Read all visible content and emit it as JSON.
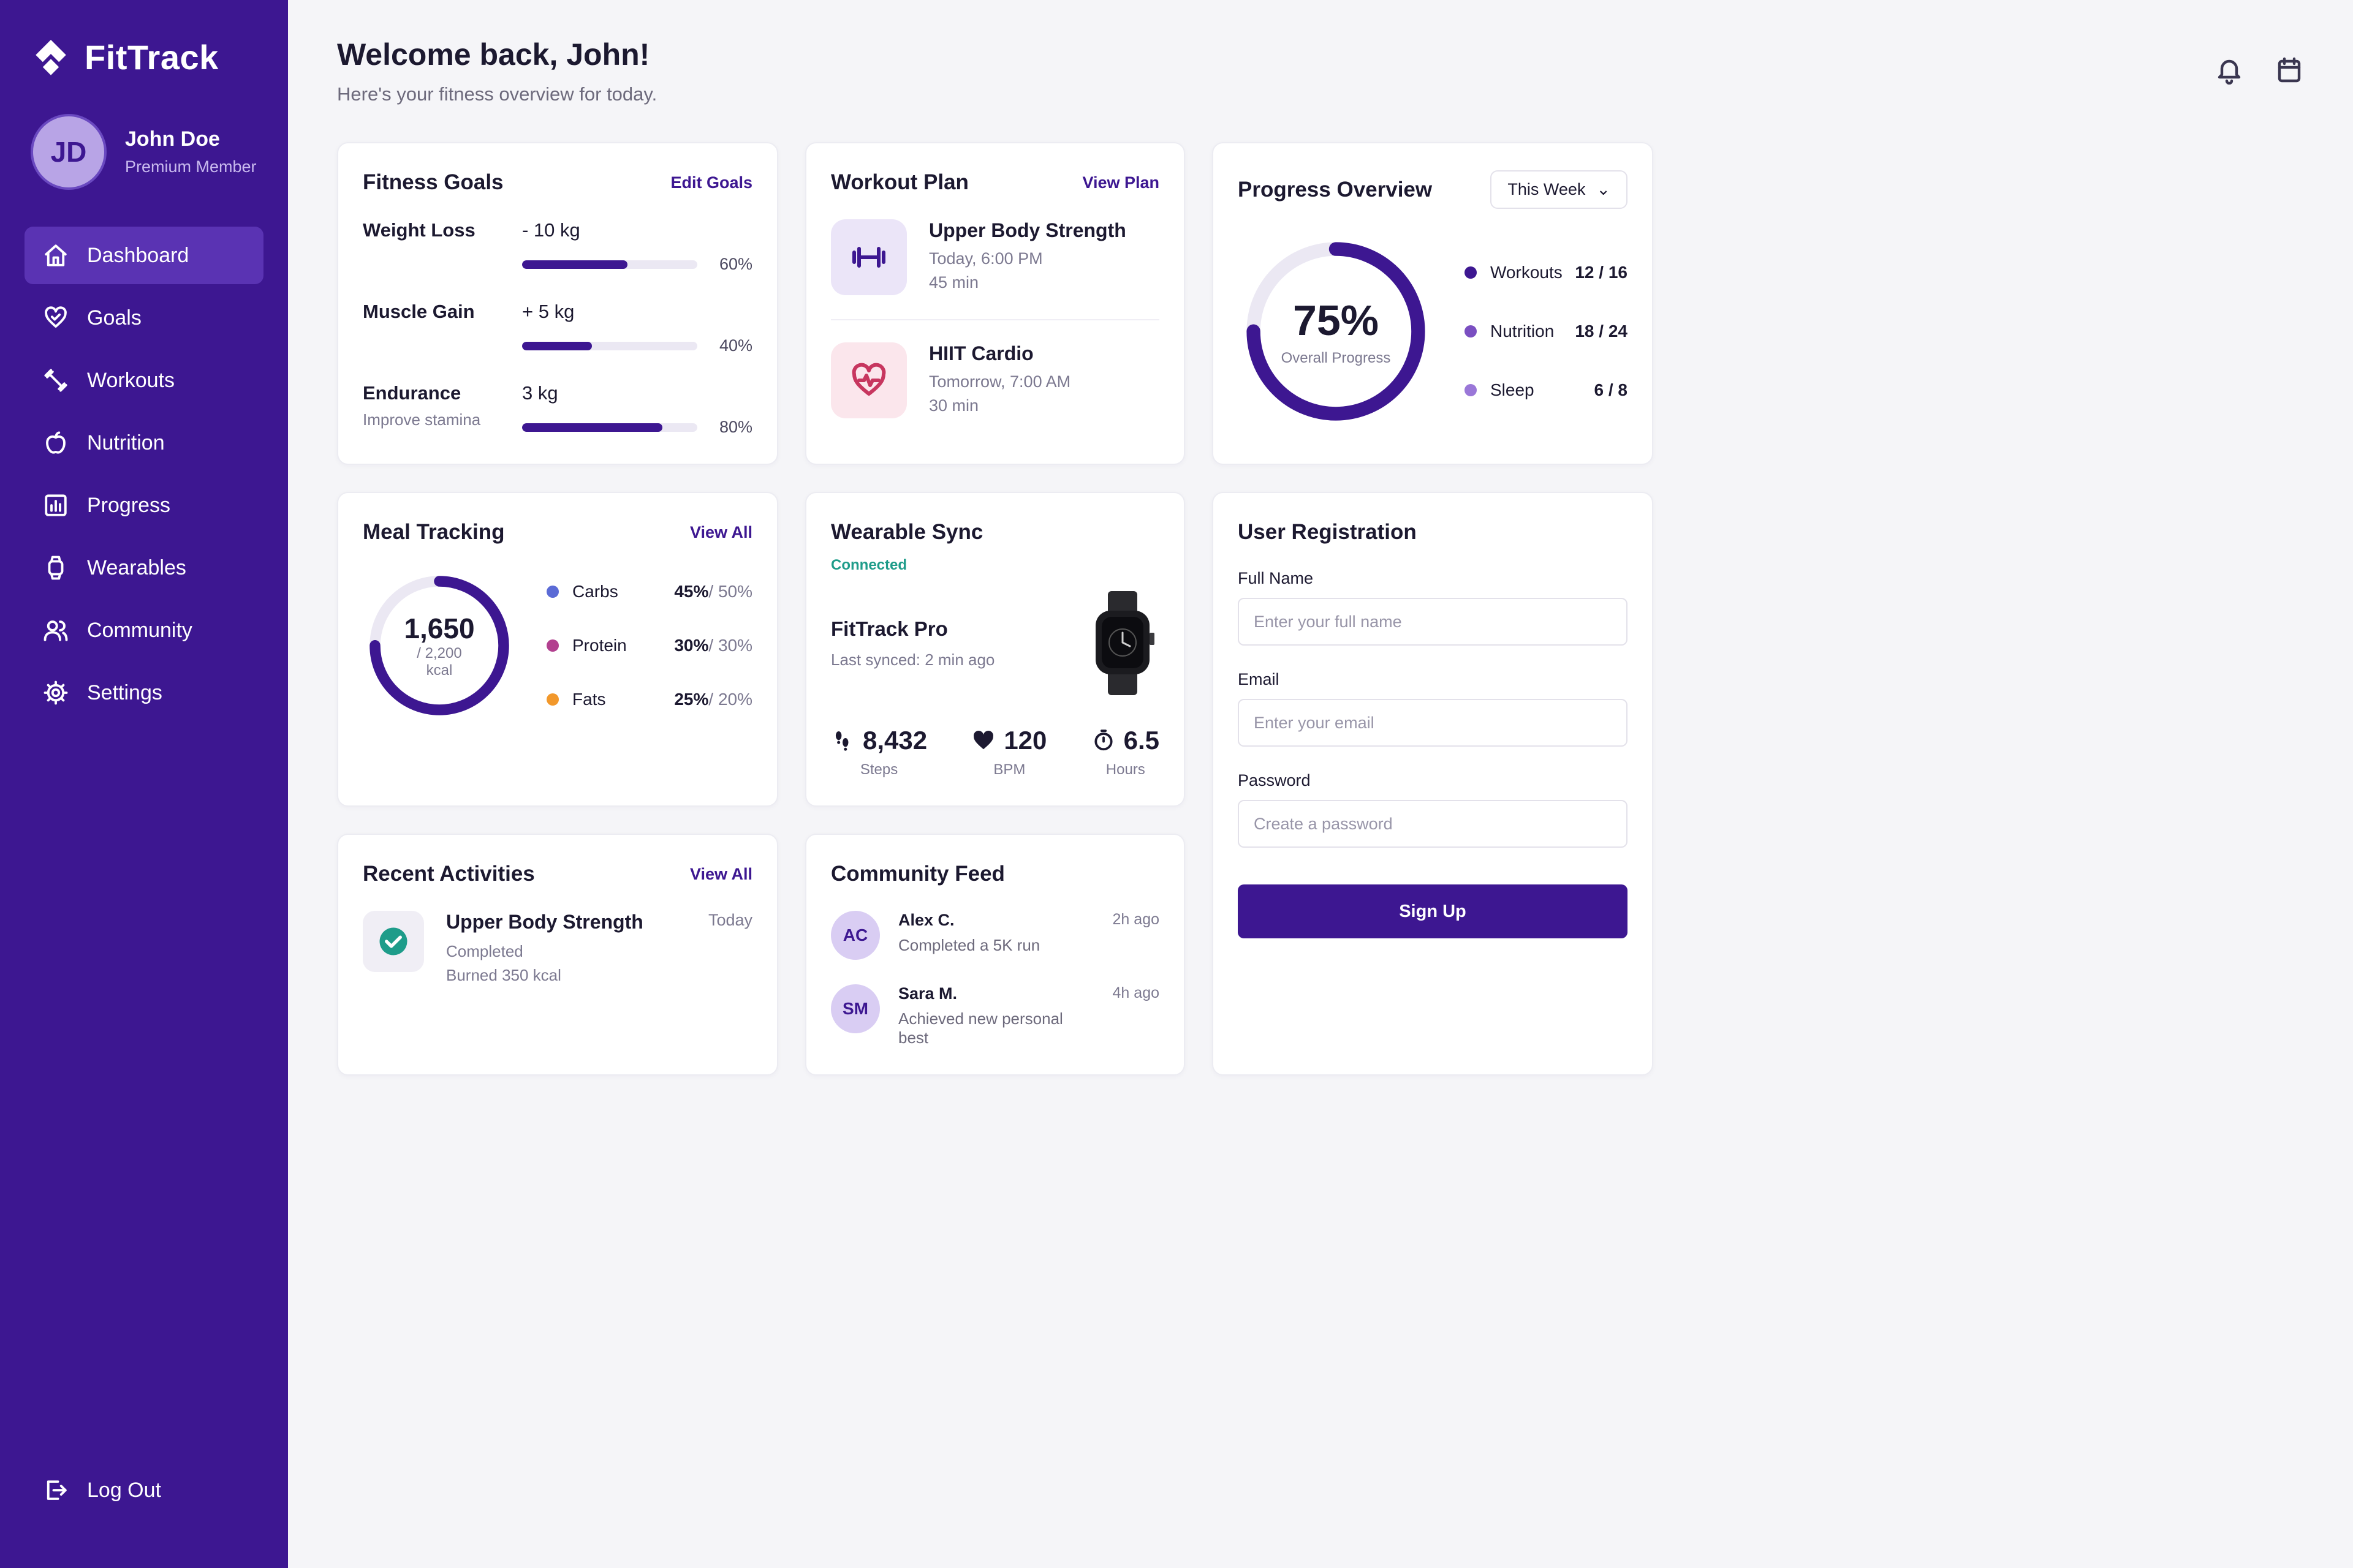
{
  "brand": {
    "name": "FitTrack"
  },
  "user": {
    "initials": "JD",
    "name": "John Doe",
    "tier": "Premium Member"
  },
  "nav": [
    {
      "label": "Dashboard",
      "icon": "home-icon"
    },
    {
      "label": "Goals",
      "icon": "heart-check-icon"
    },
    {
      "label": "Workouts",
      "icon": "dumbbell-icon"
    },
    {
      "label": "Nutrition",
      "icon": "apple-icon"
    },
    {
      "label": "Progress",
      "icon": "bar-chart-icon"
    },
    {
      "label": "Wearables",
      "icon": "watch-icon"
    },
    {
      "label": "Community",
      "icon": "users-icon"
    },
    {
      "label": "Settings",
      "icon": "gear-icon"
    }
  ],
  "logout": {
    "label": "Log Out"
  },
  "header": {
    "welcome": "Welcome back, John!",
    "subtitle": "Here's your fitness overview for today."
  },
  "goals": {
    "title": "Fitness Goals",
    "link": "Edit Goals",
    "items": [
      {
        "name": "Weight Loss",
        "note": "",
        "target": "- 10 kg",
        "percent_label": "60%",
        "progress": 0.6
      },
      {
        "name": "Muscle Gain",
        "note": "",
        "target": "+ 5 kg",
        "percent_label": "40%",
        "progress": 0.4
      },
      {
        "name": "Endurance",
        "note": "Improve stamina",
        "target": "3 kg",
        "percent_label": "80%",
        "progress": 0.8
      }
    ]
  },
  "workout_plan": {
    "title": "Workout Plan",
    "link": "View Plan",
    "items": [
      {
        "name": "Upper Body Strength",
        "time": "Today, 6:00 PM",
        "duration": "45 min",
        "icon": "dumbbell-icon"
      },
      {
        "name": "HIIT Cardio",
        "time": "Tomorrow, 7:00 AM",
        "duration": "30 min",
        "icon": "heart-pulse-icon"
      }
    ]
  },
  "progress": {
    "title": "Progress Overview",
    "range": "This Week",
    "overall": "75%",
    "overall_label": "Overall Progress",
    "overall_value": 0.75,
    "items": [
      {
        "label": "Workouts",
        "value": "12 / 16",
        "color": "#3d1791"
      },
      {
        "label": "Nutrition",
        "value": "18 / 24",
        "color": "#7a4fc1"
      },
      {
        "label": "Sleep",
        "value": "6 / 8",
        "color": "#9a77d8"
      }
    ]
  },
  "meal": {
    "title": "Meal Tracking",
    "link": "View All",
    "calories": "1,650",
    "goal": "/ 2,200",
    "unit": "kcal",
    "fraction": 0.75,
    "macros": [
      {
        "name": "Carbs",
        "actual": "45%",
        "target": " / 50%",
        "color": "#5b6bd6"
      },
      {
        "name": "Protein",
        "actual": "30%",
        "target": " / 30%",
        "color": "#b2408f"
      },
      {
        "name": "Fats",
        "actual": "25%",
        "target": " / 20%",
        "color": "#f2982b"
      }
    ]
  },
  "wearable": {
    "title": "Wearable Sync",
    "status": "Connected",
    "device": "FitTrack Pro",
    "synced": "Last synced: 2 min ago",
    "stats": [
      {
        "value": "8,432",
        "label": "Steps",
        "icon": "footsteps-icon"
      },
      {
        "value": "120",
        "label": "BPM",
        "icon": "heart-icon"
      },
      {
        "value": "6.5",
        "label": "Hours",
        "icon": "timer-icon"
      }
    ]
  },
  "registration": {
    "title": "User Registration",
    "full_name": {
      "label": "Full Name",
      "placeholder": "Enter your full name"
    },
    "email": {
      "label": "Email",
      "placeholder": "Enter your email"
    },
    "password": {
      "label": "Password",
      "placeholder": "Create a password"
    },
    "submit": "Sign Up"
  },
  "activities": {
    "title": "Recent Activities",
    "link": "View All",
    "items": [
      {
        "name": "Upper Body Strength",
        "status": "Completed",
        "detail": "Burned 350 kcal",
        "date": "Today"
      }
    ]
  },
  "community": {
    "title": "Community Feed",
    "items": [
      {
        "initials": "AC",
        "name": "Alex C.",
        "text": "Completed a 5K run",
        "time": "2h ago"
      },
      {
        "initials": "SM",
        "name": "Sara M.",
        "text": "Achieved new personal best",
        "time": "4h ago"
      }
    ]
  }
}
